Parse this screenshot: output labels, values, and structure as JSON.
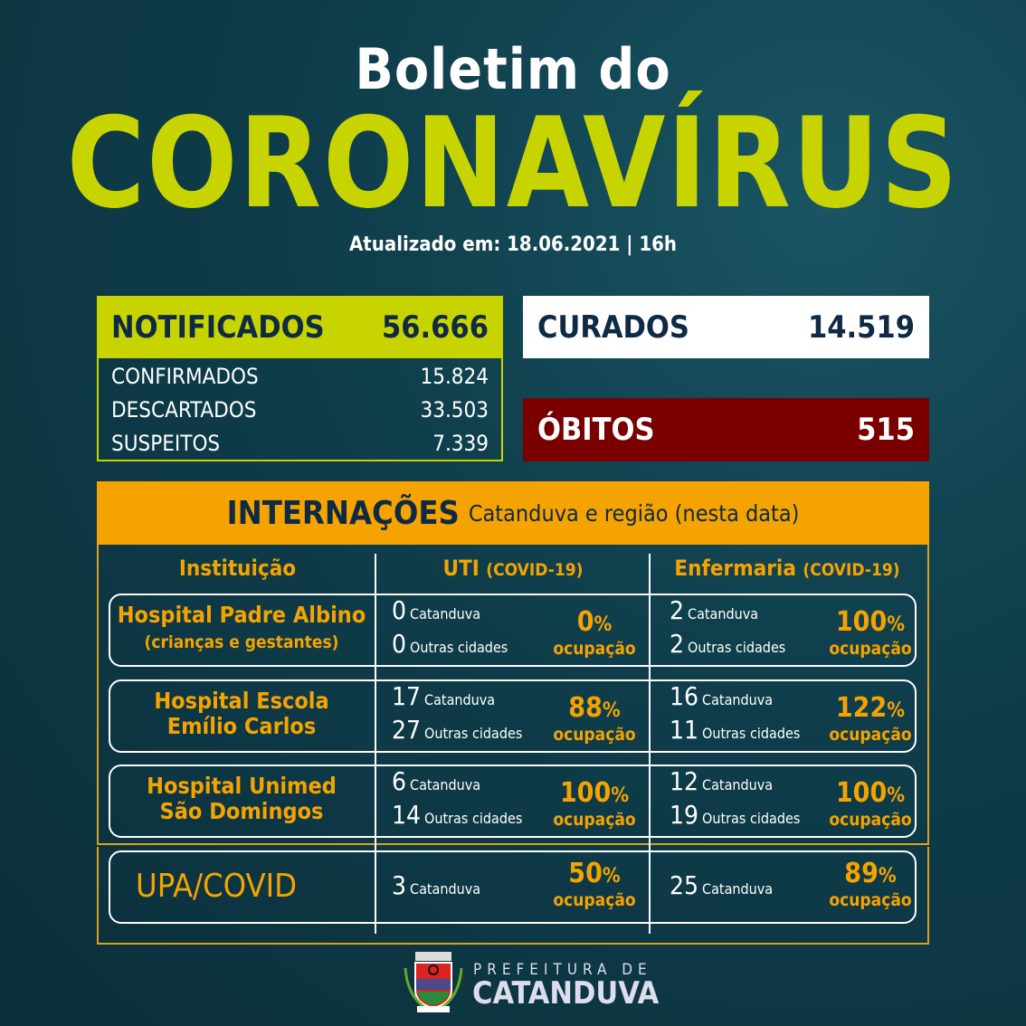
{
  "header": {
    "line1": "Boletim do",
    "line2": "CORONAVÍRUS",
    "updated": "Atualizado em: 18.06.2021  | 16h"
  },
  "notificados": {
    "label": "NOTIFICADOS",
    "value": "56.666",
    "rows": [
      {
        "label": "CONFIRMADOS",
        "value": "15.824"
      },
      {
        "label": "DESCARTADOS",
        "value": "33.503"
      },
      {
        "label": "SUSPEITOS",
        "value": "7.339"
      }
    ]
  },
  "curados": {
    "label": "CURADOS",
    "value": "14.519"
  },
  "obitos": {
    "label": "ÓBITOS",
    "value": "515"
  },
  "internacoes": {
    "title": "INTERNAÇÕES",
    "subtitle": "Catanduva e região (nesta data)",
    "columns": [
      {
        "label": "Instituição",
        "sub": ""
      },
      {
        "label": "UTI",
        "sub": "(COVID-19)"
      },
      {
        "label": "Enfermaria",
        "sub": "(COVID-19)"
      }
    ],
    "occupation_label": "ocupação",
    "local_label": "Catanduva",
    "other_label": "Outras cidades",
    "rows": [
      {
        "name": "Hospital Padre Albino",
        "name2": "(crianças e gestantes)",
        "uti": {
          "local": "0",
          "other": "0",
          "pct": "0"
        },
        "enf": {
          "local": "2",
          "other": "2",
          "pct": "100"
        }
      },
      {
        "name": "Hospital Escola",
        "name2": "Emílio Carlos",
        "uti": {
          "local": "17",
          "other": "27",
          "pct": "88"
        },
        "enf": {
          "local": "16",
          "other": "11",
          "pct": "122"
        }
      },
      {
        "name": "Hospital Unimed",
        "name2": "São Domingos",
        "uti": {
          "local": "6",
          "other": "14",
          "pct": "100"
        },
        "enf": {
          "local": "12",
          "other": "19",
          "pct": "100"
        }
      },
      {
        "name": "UPA/COVID",
        "name2": "",
        "uti": {
          "local": "3",
          "pct": "50"
        },
        "enf": {
          "local": "25",
          "pct": "89"
        }
      }
    ]
  },
  "colors": {
    "lime": "#c8d400",
    "orange": "#f5a300",
    "red": "#7a0000",
    "navy": "#0e2a44"
  },
  "footer": {
    "line1": "PREFEITURA DE",
    "line2": "CATANDUVA",
    "crest_text": "CATANDUVA"
  }
}
